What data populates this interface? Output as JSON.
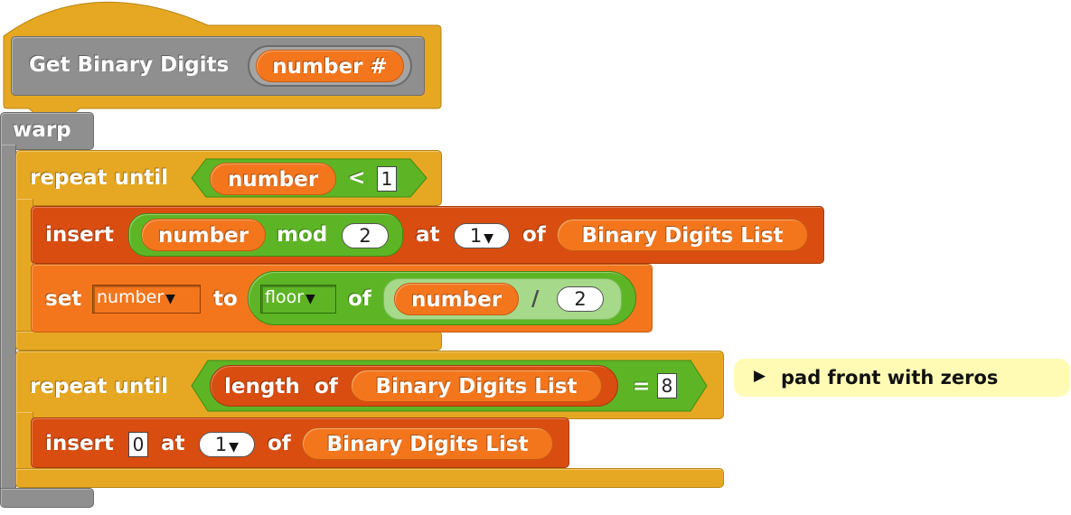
{
  "hat": {
    "block_label": "Get Binary Digits",
    "param_label": "number #"
  },
  "warp": {
    "label": "warp"
  },
  "repeat1": {
    "label": "repeat until",
    "var": "number",
    "op": "<",
    "value": "1"
  },
  "insert1": {
    "insert_label": "insert",
    "var": "number",
    "mod_label": "mod",
    "mod_value": "2",
    "at_label": "at",
    "index": "1",
    "of_label": "of",
    "list": "Binary Digits List"
  },
  "set1": {
    "set_label": "set",
    "var": "number",
    "to_label": "to",
    "func": "floor",
    "of_label": "of",
    "operand": "number",
    "op": "/",
    "divisor": "2"
  },
  "repeat2": {
    "label": "repeat until",
    "length_label": "length",
    "of_label": "of",
    "list": "Binary Digits List",
    "op": "=",
    "value": "8"
  },
  "comment": {
    "text": "pad front with zeros"
  },
  "insert2": {
    "insert_label": "insert",
    "value": "0",
    "at_label": "at",
    "index": "1",
    "of_label": "of",
    "list": "Binary Digits List"
  }
}
